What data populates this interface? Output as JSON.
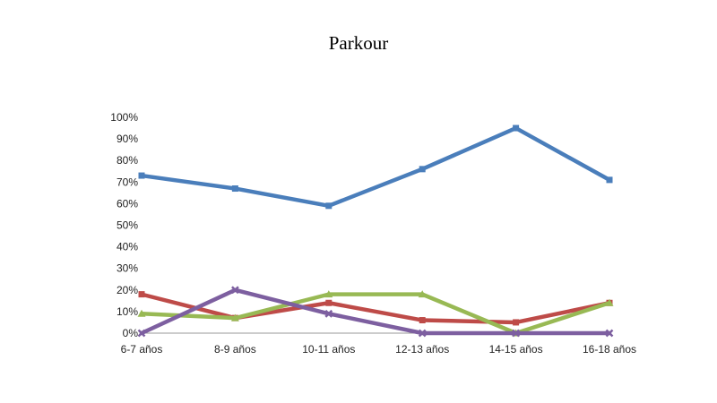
{
  "chart_data": {
    "type": "line",
    "title": "Parkour",
    "categories": [
      "6-7 años",
      "8-9 años",
      "10-11 años",
      "12-13 años",
      "14-15 años",
      "16-18 años"
    ],
    "yticks": [
      "0%",
      "10%",
      "20%",
      "30%",
      "40%",
      "50%",
      "60%",
      "70%",
      "80%",
      "90%",
      "100%"
    ],
    "ylim": [
      0,
      100
    ],
    "grid": false,
    "legend": "none",
    "series": [
      {
        "color": "#4a7ebb",
        "marker": "square",
        "values": [
          73,
          67,
          59,
          76,
          95,
          71
        ]
      },
      {
        "color": "#be4b48",
        "marker": "square",
        "values": [
          18,
          7,
          14,
          6,
          5,
          14
        ]
      },
      {
        "color": "#98b954",
        "marker": "triangle",
        "values": [
          9,
          7,
          18,
          18,
          0,
          14
        ]
      },
      {
        "color": "#7d5fa0",
        "marker": "cross",
        "values": [
          0,
          20,
          9,
          0,
          0,
          0
        ]
      }
    ]
  }
}
